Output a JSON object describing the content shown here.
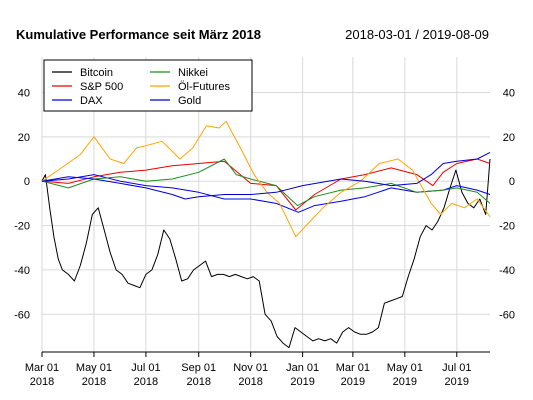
{
  "chart_data": {
    "type": "line",
    "title": "Kumulative Performance seit März 2018",
    "subtitle": "2018-03-01 / 2019-08-09",
    "xlabel": "",
    "ylabel": "",
    "xlim": [
      "2018-03-01",
      "2019-08-09"
    ],
    "ylim": [
      -77,
      56
    ],
    "y_ticks": [
      -60,
      -40,
      -20,
      0,
      20,
      40
    ],
    "y_tick_labels": [
      "-60",
      "-40",
      "-20",
      "0",
      "20",
      "40"
    ],
    "x_ticks": [
      "2018-03-01",
      "2018-05-01",
      "2018-07-01",
      "2018-09-01",
      "2018-11-01",
      "2019-01-01",
      "2019-03-01",
      "2019-05-01",
      "2019-07-01"
    ],
    "x_tick_labels": [
      [
        "Mar 01",
        "2018"
      ],
      [
        "May 01",
        "2018"
      ],
      [
        "Jul 01",
        "2018"
      ],
      [
        "Sep 01",
        "2018"
      ],
      [
        "Nov 01",
        "2018"
      ],
      [
        "Jan 01",
        "2019"
      ],
      [
        "Mar 01",
        "2019"
      ],
      [
        "May 01",
        "2019"
      ],
      [
        "Jul 01",
        "2019"
      ]
    ],
    "grid": true,
    "legend_position": "top-left",
    "series": [
      {
        "name": "Bitcoin",
        "color": "#000000",
        "x": [
          "2018-03-01",
          "2018-03-05",
          "2018-03-10",
          "2018-03-15",
          "2018-03-20",
          "2018-03-25",
          "2018-04-01",
          "2018-04-08",
          "2018-04-15",
          "2018-04-22",
          "2018-04-29",
          "2018-05-06",
          "2018-05-13",
          "2018-05-20",
          "2018-05-27",
          "2018-06-03",
          "2018-06-10",
          "2018-06-17",
          "2018-06-24",
          "2018-07-01",
          "2018-07-08",
          "2018-07-15",
          "2018-07-22",
          "2018-07-29",
          "2018-08-05",
          "2018-08-12",
          "2018-08-19",
          "2018-08-26",
          "2018-09-02",
          "2018-09-09",
          "2018-09-16",
          "2018-09-23",
          "2018-09-30",
          "2018-10-07",
          "2018-10-14",
          "2018-10-21",
          "2018-10-28",
          "2018-11-04",
          "2018-11-11",
          "2018-11-18",
          "2018-11-25",
          "2018-12-02",
          "2018-12-09",
          "2018-12-16",
          "2018-12-23",
          "2018-12-30",
          "2019-01-06",
          "2019-01-13",
          "2019-01-20",
          "2019-01-27",
          "2019-02-03",
          "2019-02-10",
          "2019-02-17",
          "2019-02-24",
          "2019-03-03",
          "2019-03-10",
          "2019-03-17",
          "2019-03-24",
          "2019-03-31",
          "2019-04-07",
          "2019-04-14",
          "2019-04-21",
          "2019-04-28",
          "2019-05-05",
          "2019-05-12",
          "2019-05-19",
          "2019-05-26",
          "2019-06-02",
          "2019-06-09",
          "2019-06-16",
          "2019-06-23",
          "2019-06-30",
          "2019-07-07",
          "2019-07-14",
          "2019-07-21",
          "2019-07-28",
          "2019-08-04",
          "2019-08-09"
        ],
        "values": [
          0,
          3,
          -12,
          -25,
          -35,
          -40,
          -42,
          -45,
          -38,
          -28,
          -15,
          -12,
          -22,
          -32,
          -40,
          -42,
          -46,
          -47,
          -48,
          -42,
          -40,
          -33,
          -22,
          -26,
          -35,
          -45,
          -44,
          -40,
          -38,
          -36,
          -43,
          -42,
          -42,
          -43,
          -42,
          -43,
          -44,
          -43,
          -45,
          -60,
          -63,
          -70,
          -73,
          -75,
          -66,
          -68,
          -70,
          -72,
          -71,
          -72,
          -71,
          -73,
          -68,
          -66,
          -68,
          -69,
          -69,
          -68,
          -66,
          -55,
          -54,
          -53,
          -52,
          -43,
          -35,
          -25,
          -20,
          -22,
          -18,
          -12,
          -3,
          5,
          -5,
          -10,
          -12,
          -8,
          -15,
          10
        ]
      },
      {
        "name": "S&P 500",
        "color": "#ee0000",
        "x": [
          "2018-03-01",
          "2018-04-01",
          "2018-05-01",
          "2018-06-01",
          "2018-07-01",
          "2018-08-01",
          "2018-09-01",
          "2018-10-01",
          "2018-11-01",
          "2018-12-01",
          "2018-12-24",
          "2019-01-15",
          "2019-02-15",
          "2019-03-15",
          "2019-04-15",
          "2019-05-15",
          "2019-06-03",
          "2019-06-15",
          "2019-07-01",
          "2019-07-25",
          "2019-08-09"
        ],
        "values": [
          0,
          -1,
          2,
          4,
          5,
          7,
          8,
          9,
          -1,
          -2,
          -13,
          -6,
          1,
          3,
          6,
          3,
          -2,
          4,
          8,
          10,
          8
        ]
      },
      {
        "name": "DAX",
        "color": "#0000ee",
        "x": [
          "2018-03-01",
          "2018-04-01",
          "2018-05-01",
          "2018-06-01",
          "2018-07-01",
          "2018-08-01",
          "2018-09-01",
          "2018-10-01",
          "2018-11-01",
          "2018-12-01",
          "2018-12-27",
          "2019-01-15",
          "2019-02-15",
          "2019-03-15",
          "2019-04-15",
          "2019-05-15",
          "2019-06-15",
          "2019-07-01",
          "2019-07-25",
          "2019-08-09"
        ],
        "values": [
          0,
          1,
          3,
          0,
          -2,
          -3,
          -5,
          -8,
          -8,
          -10,
          -14,
          -11,
          -9,
          -7,
          -3,
          -5,
          -4,
          -2,
          -4,
          -6
        ]
      },
      {
        "name": "Nikkei",
        "color": "#228B22",
        "x": [
          "2018-03-01",
          "2018-04-01",
          "2018-05-01",
          "2018-06-01",
          "2018-07-01",
          "2018-08-01",
          "2018-09-01",
          "2018-10-01",
          "2018-10-15",
          "2018-11-01",
          "2018-12-01",
          "2018-12-26",
          "2019-01-15",
          "2019-02-15",
          "2019-03-15",
          "2019-04-15",
          "2019-05-15",
          "2019-06-15",
          "2019-07-01",
          "2019-07-25",
          "2019-08-09"
        ],
        "values": [
          0,
          -3,
          1,
          2,
          0,
          1,
          4,
          10,
          3,
          1,
          -2,
          -11,
          -7,
          -4,
          -3,
          -1,
          -5,
          -4,
          -3,
          -5,
          -10
        ]
      },
      {
        "name": "Öl-Futures",
        "color": "#FFA500",
        "x": [
          "2018-03-01",
          "2018-03-20",
          "2018-04-15",
          "2018-05-01",
          "2018-05-20",
          "2018-06-05",
          "2018-06-20",
          "2018-07-01",
          "2018-07-20",
          "2018-08-10",
          "2018-08-25",
          "2018-09-10",
          "2018-09-25",
          "2018-10-03",
          "2018-10-20",
          "2018-11-05",
          "2018-11-20",
          "2018-12-05",
          "2018-12-24",
          "2019-01-10",
          "2019-01-25",
          "2019-02-15",
          "2019-03-10",
          "2019-04-01",
          "2019-04-23",
          "2019-05-10",
          "2019-06-01",
          "2019-06-12",
          "2019-06-25",
          "2019-07-10",
          "2019-07-25",
          "2019-08-09"
        ],
        "values": [
          0,
          5,
          12,
          20,
          10,
          8,
          15,
          16,
          18,
          10,
          15,
          25,
          24,
          27,
          15,
          3,
          -5,
          -10,
          -25,
          -18,
          -12,
          -5,
          0,
          8,
          10,
          5,
          -10,
          -15,
          -10,
          -12,
          -8,
          -16
        ]
      },
      {
        "name": "Gold",
        "color": "#0000cc",
        "x": [
          "2018-03-01",
          "2018-04-01",
          "2018-05-01",
          "2018-06-01",
          "2018-07-01",
          "2018-08-01",
          "2018-08-16",
          "2018-09-01",
          "2018-10-01",
          "2018-11-01",
          "2018-12-01",
          "2019-01-01",
          "2019-02-15",
          "2019-03-15",
          "2019-04-15",
          "2019-05-15",
          "2019-06-01",
          "2019-06-15",
          "2019-07-01",
          "2019-07-25",
          "2019-08-09"
        ],
        "values": [
          0,
          2,
          1,
          -1,
          -3,
          -6,
          -8,
          -7,
          -6,
          -6,
          -5,
          -2,
          1,
          0,
          -2,
          -1,
          3,
          8,
          9,
          10,
          13
        ]
      }
    ]
  }
}
